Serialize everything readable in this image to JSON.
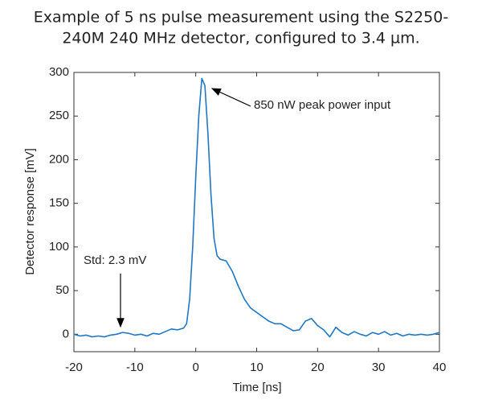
{
  "chart_data": {
    "type": "line",
    "title": [
      "Example of 5 ns pulse measurement using the S2250-",
      "240M 240 MHz detector, configured to 3.4 µm."
    ],
    "xlabel": "Time [ns]",
    "ylabel": "Detector response [mV]",
    "annotations": [
      "850 nW peak power input",
      "Std: 2.3 mV"
    ],
    "xlim": [
      -20,
      40
    ],
    "xticks": [
      -20,
      -10,
      0,
      10,
      20,
      30,
      40
    ],
    "ylim": [
      -20,
      300
    ],
    "yticks": [
      0,
      50,
      100,
      150,
      200,
      250,
      300
    ],
    "grid": false,
    "series": [
      {
        "color": "#1f77c4",
        "x": [
          -20,
          -19,
          -18,
          -17,
          -16,
          -15,
          -14,
          -13,
          -12,
          -11,
          -10,
          -9,
          -8,
          -7,
          -6,
          -5,
          -4,
          -3,
          -2,
          -1.5,
          -1,
          -0.5,
          0,
          0.5,
          1,
          1.5,
          2,
          2.5,
          3,
          3.5,
          4,
          5,
          6,
          7,
          8,
          9,
          10,
          11,
          12,
          13,
          14,
          15,
          16,
          17,
          18,
          19,
          20,
          21,
          22,
          23,
          24,
          25,
          26,
          27,
          28,
          29,
          30,
          31,
          32,
          33,
          34,
          35,
          36,
          37,
          38,
          39,
          40
        ],
        "values": [
          0,
          -2,
          -1,
          -3,
          -2,
          -3,
          -1,
          0,
          2,
          1,
          -1,
          0,
          -2,
          1,
          0,
          3,
          6,
          5,
          7,
          12,
          40,
          100,
          180,
          250,
          293,
          285,
          230,
          160,
          110,
          90,
          86,
          84,
          72,
          55,
          40,
          30,
          25,
          20,
          15,
          12,
          12,
          8,
          4,
          5,
          15,
          18,
          10,
          5,
          -3,
          8,
          2,
          -1,
          3,
          0,
          -2,
          2,
          0,
          3,
          -1,
          1,
          -2,
          0,
          -1,
          0,
          -1,
          0,
          2
        ]
      }
    ]
  }
}
